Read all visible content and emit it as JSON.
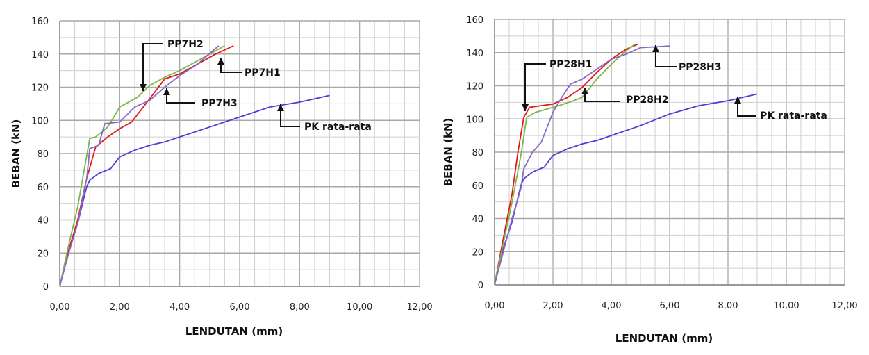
{
  "chart_data": [
    {
      "type": "line",
      "xlabel": "LENDUTAN (mm)",
      "ylabel": "BEBAN (kN)",
      "xlim": [
        0,
        12
      ],
      "ylim": [
        0,
        160
      ],
      "xticks": [
        "0,00",
        "2,00",
        "4,00",
        "6,00",
        "8,00",
        "10,00",
        "12,00"
      ],
      "yticks": [
        "0",
        "20",
        "40",
        "60",
        "80",
        "100",
        "120",
        "140",
        "160"
      ],
      "grid": true,
      "series": [
        {
          "name": "PK rata-rata",
          "color": "#4a3fd6",
          "x": [
            0,
            0.3,
            0.6,
            0.9,
            1.0,
            1.3,
            1.7,
            2.0,
            2.5,
            3.0,
            3.5,
            4.0,
            5.0,
            6.0,
            7.0,
            8.0,
            9.0
          ],
          "y": [
            0,
            22,
            38,
            60,
            64,
            68,
            71,
            78,
            82,
            85,
            87,
            90,
            96,
            102,
            108,
            111,
            115
          ]
        },
        {
          "name": "PP7H1",
          "color": "#e01818",
          "x": [
            0,
            0.3,
            0.6,
            0.9,
            1.2,
            1.6,
            2.0,
            2.4,
            3.0,
            3.5,
            4.0,
            4.6,
            5.2,
            5.8
          ],
          "y": [
            0,
            22,
            40,
            65,
            84,
            90,
            95,
            99,
            113,
            125,
            128,
            134,
            140,
            145
          ]
        },
        {
          "name": "PP7H2",
          "color": "#7ab648",
          "x": [
            0,
            0.3,
            0.6,
            1.0,
            1.2,
            1.6,
            2.0,
            2.6,
            3.0,
            3.5,
            4.0,
            4.6,
            5.2,
            5.5
          ],
          "y": [
            0,
            25,
            48,
            89,
            90,
            96,
            108,
            114,
            121,
            126,
            130,
            136,
            142,
            145
          ]
        },
        {
          "name": "PP7H3",
          "color": "#8a67c6",
          "x": [
            0,
            0.3,
            0.6,
            0.9,
            1.0,
            1.3,
            1.5,
            2.0,
            2.5,
            3.0,
            3.5,
            4.0,
            4.6,
            5.3
          ],
          "y": [
            0,
            20,
            38,
            65,
            83,
            85,
            98,
            99,
            108,
            112,
            120,
            127,
            134,
            145
          ]
        }
      ],
      "annotations": [
        "PP7H2",
        "PP7H1",
        "PP7H3",
        "PK rata-rata"
      ]
    },
    {
      "type": "line",
      "xlabel": "LENDUTAN (mm)",
      "ylabel": "BEBAN (kN)",
      "xlim": [
        0,
        12
      ],
      "ylim": [
        0,
        160
      ],
      "xticks": [
        "0,00",
        "2,00",
        "4,00",
        "6,00",
        "8,00",
        "10,00",
        "12,00"
      ],
      "yticks": [
        "0",
        "20",
        "40",
        "60",
        "80",
        "100",
        "120",
        "140",
        "160"
      ],
      "grid": true,
      "series": [
        {
          "name": "PK rata-rata",
          "color": "#4a3fd6",
          "x": [
            0,
            0.3,
            0.6,
            0.9,
            1.0,
            1.3,
            1.7,
            2.0,
            2.5,
            3.0,
            3.5,
            4.0,
            5.0,
            6.0,
            7.0,
            8.0,
            9.0
          ],
          "y": [
            0,
            22,
            38,
            60,
            64,
            68,
            71,
            78,
            82,
            85,
            87,
            90,
            96,
            103,
            108,
            111,
            115
          ]
        },
        {
          "name": "PP28H1",
          "color": "#e01818",
          "x": [
            0,
            0.3,
            0.6,
            0.8,
            1.0,
            1.2,
            1.6,
            2.0,
            2.5,
            3.0,
            3.5,
            4.0,
            4.5,
            4.9
          ],
          "y": [
            0,
            28,
            55,
            80,
            101,
            107,
            108,
            109,
            113,
            119,
            128,
            136,
            142,
            145
          ]
        },
        {
          "name": "PP28H2",
          "color": "#7ab648",
          "x": [
            0,
            0.3,
            0.6,
            0.9,
            1.1,
            1.4,
            1.8,
            2.2,
            2.7,
            3.0,
            3.5,
            4.0,
            4.5,
            4.8
          ],
          "y": [
            0,
            25,
            50,
            78,
            101,
            104,
            106,
            108,
            111,
            113,
            124,
            133,
            141,
            145
          ]
        },
        {
          "name": "PP28H3",
          "color": "#8a67c6",
          "x": [
            0,
            0.3,
            0.6,
            0.9,
            1.0,
            1.3,
            1.6,
            2.0,
            2.3,
            2.6,
            3.0,
            3.5,
            4.0,
            4.5,
            5.0,
            6.0
          ],
          "y": [
            0,
            20,
            40,
            58,
            70,
            80,
            86,
            104,
            113,
            121,
            124,
            130,
            136,
            139,
            143,
            144
          ]
        }
      ],
      "annotations": [
        "PP28H1",
        "PP28H3",
        "PP28H2",
        "PK rata-rata"
      ]
    }
  ]
}
